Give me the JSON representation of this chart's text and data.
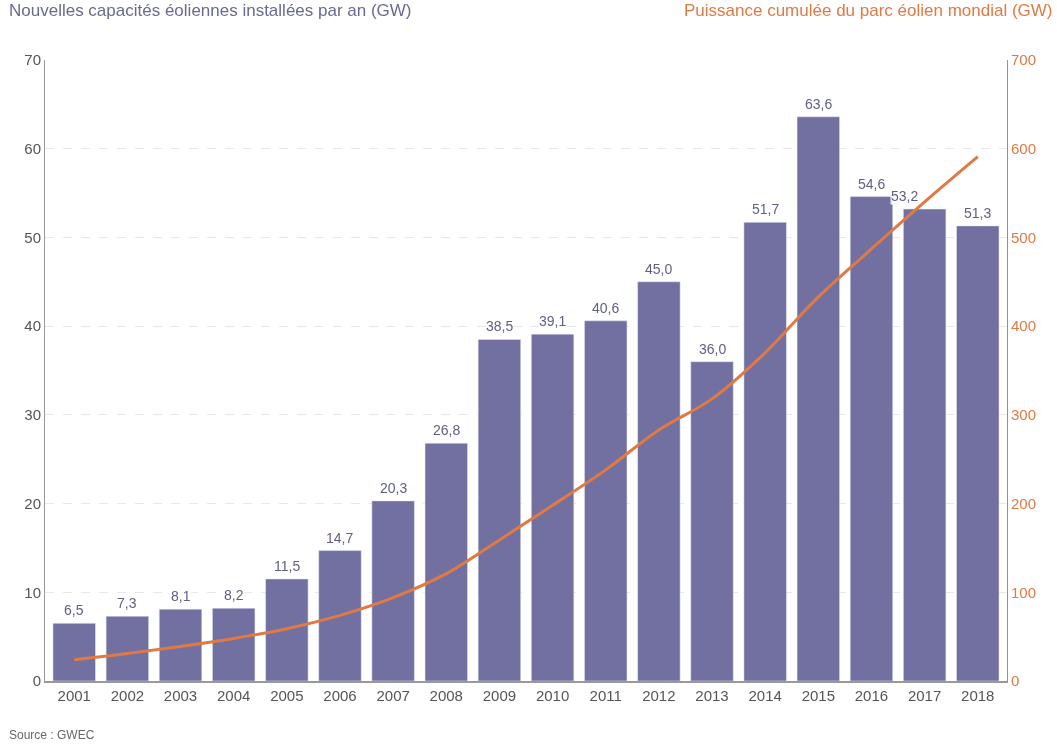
{
  "chart_data": {
    "type": "bar",
    "ylabel": "Nouvelles capacités éoliennes installées par an (GW)",
    "y2label": "Puissance cumulée du parc éolien mondial (GW)",
    "categories": [
      "2001",
      "2002",
      "2003",
      "2004",
      "2005",
      "2006",
      "2007",
      "2008",
      "2009",
      "2010",
      "2011",
      "2012",
      "2013",
      "2014",
      "2015",
      "2016",
      "2017",
      "2018"
    ],
    "series": [
      {
        "color": "#7170a1",
        "values": [
          6.5,
          7.3,
          8.1,
          8.2,
          11.5,
          14.7,
          20.3,
          26.8,
          38.5,
          39.1,
          40.6,
          45.0,
          36.0,
          51.7,
          63.6,
          54.6,
          53.2,
          51.3
        ],
        "value_labels": [
          "6,5",
          "7,3",
          "8,1",
          "8,2",
          "11,5",
          "14,7",
          "20,3",
          "26,8",
          "38,5",
          "39,1",
          "40,6",
          "45,0",
          "36,0",
          "51,7",
          "63,6",
          "54,6",
          "53,2",
          "51,3"
        ]
      },
      {
        "type": "line",
        "axis": "y2",
        "color": "#e07a45",
        "values": [
          24,
          31,
          39,
          48,
          59,
          74,
          94,
          121,
          159,
          198,
          238,
          283,
          318,
          370,
          433,
          487,
          540,
          591
        ]
      }
    ],
    "ylim": [
      0,
      70
    ],
    "yticks": [
      0,
      10,
      20,
      30,
      40,
      50,
      60,
      70
    ],
    "y2lim": [
      0,
      700
    ],
    "y2ticks": [
      0,
      100,
      200,
      300,
      400,
      500,
      600,
      700
    ],
    "grid": "y",
    "marker": "none",
    "line_style": "solid",
    "annotations": [
      "Source : GWEC"
    ]
  }
}
